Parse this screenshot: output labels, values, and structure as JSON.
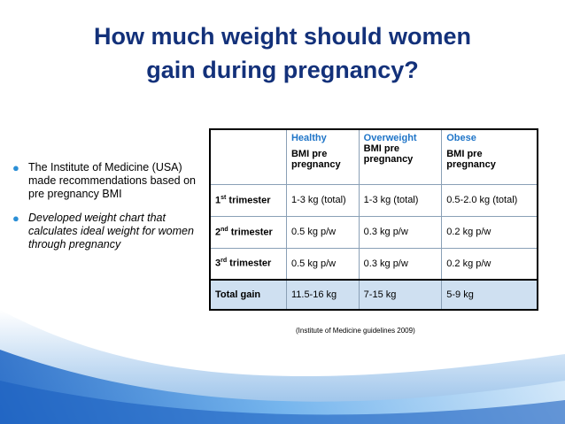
{
  "title_line1": "How much weight should women",
  "title_line2": "gain during pregnancy?",
  "bullets": [
    "The Institute of Medicine (USA) made recommendations based on pre pregnancy BMI",
    "Developed weight chart that calculates ideal weight for women through pregnancy"
  ],
  "table": {
    "headers": [
      {
        "category": "Healthy",
        "sub": "BMI pre pregnancy"
      },
      {
        "category": "Overweight",
        "sub": "BMI pre pregnancy"
      },
      {
        "category": "Obese",
        "sub": "BMI pre pregnancy"
      }
    ],
    "rows": [
      {
        "ordinal": "1",
        "suffix": "st",
        "label": " trimester",
        "values": [
          "1-3 kg (total)",
          "1-3 kg (total)",
          "0.5-2.0 kg (total)"
        ]
      },
      {
        "ordinal": "2",
        "suffix": "nd",
        "label": " trimester",
        "values": [
          "0.5 kg p/w",
          "0.3 kg p/w",
          "0.2 kg p/w"
        ]
      },
      {
        "ordinal": "3",
        "suffix": "rd",
        "label": " trimester",
        "values": [
          "0.5 kg p/w",
          "0.3 kg p/w",
          "0.2 kg p/w"
        ]
      }
    ],
    "total": {
      "label": "Total gain",
      "values": [
        "11.5-16 kg",
        "7-15 kg",
        "5-9 kg"
      ]
    }
  },
  "caption": "(Institute of Medicine guidelines 2009)",
  "colors": {
    "title": "#13317a",
    "accent": "#1f75c8",
    "bullet": "#2b8fd6",
    "total_row": "#cfe0f1"
  }
}
